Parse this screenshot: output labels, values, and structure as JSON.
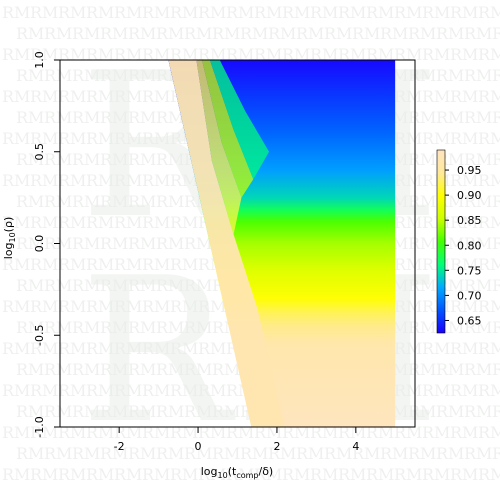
{
  "chart_data": {
    "type": "heatmap",
    "xlabel": "log10(t_comp / δ)",
    "ylabel": "log10(ρ)",
    "xlim": [
      -3.5,
      5.5
    ],
    "ylim": [
      -1.0,
      1.0
    ],
    "x_ticks": [
      "-2",
      "0",
      "2",
      "4"
    ],
    "y_ticks": [
      "-1.0",
      "-0.5",
      "0.0",
      "0.5",
      "1.0"
    ],
    "x_tick_values": [
      -2,
      0,
      2,
      4
    ],
    "y_tick_values": [
      -1.0,
      -0.5,
      0.0,
      0.5,
      1.0
    ],
    "data_x_range": [
      -3.4,
      5.0
    ],
    "colorbar": {
      "range": [
        0.625,
        0.99
      ],
      "ticks": [
        "0.65",
        "0.70",
        "0.75",
        "0.80",
        "0.85",
        "0.90",
        "0.95"
      ],
      "tick_values": [
        0.65,
        0.7,
        0.75,
        0.8,
        0.85,
        0.9,
        0.95
      ],
      "colors": [
        "#1a00ff",
        "#0055ff",
        "#00aaff",
        "#00ff77",
        "#44ff00",
        "#ccff00",
        "#ffff00",
        "#ffe99a",
        "#ffe4c2"
      ]
    },
    "blank_region": {
      "description_boundary_top": [
        -0.6,
        1.0
      ],
      "description_boundary_bottom": [
        1.3,
        -1.0
      ]
    },
    "grid": false,
    "legend": "colorbar-right"
  },
  "watermark": {
    "letters": [
      "R",
      "M"
    ],
    "small_text": "RM"
  }
}
